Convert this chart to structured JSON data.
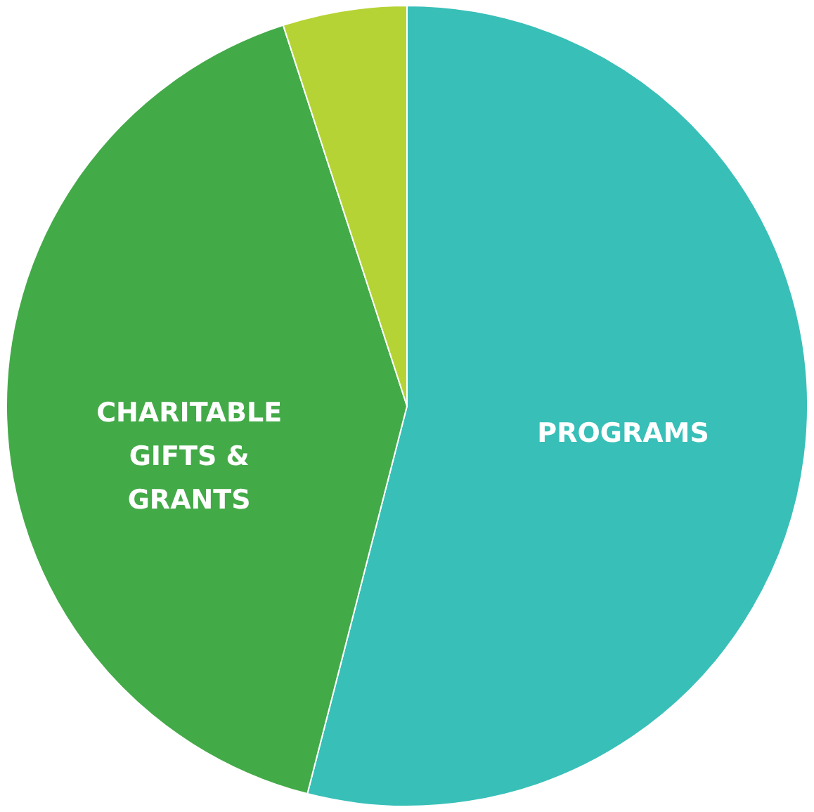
{
  "chart_data": {
    "type": "pie",
    "categories": [
      "PROGRAMS",
      "CHARITABLE GIFTS & GRANTS",
      null
    ],
    "values": [
      54,
      41,
      5
    ],
    "colors": [
      "#38bfb8",
      "#43aa48",
      "#b5d334"
    ]
  }
}
